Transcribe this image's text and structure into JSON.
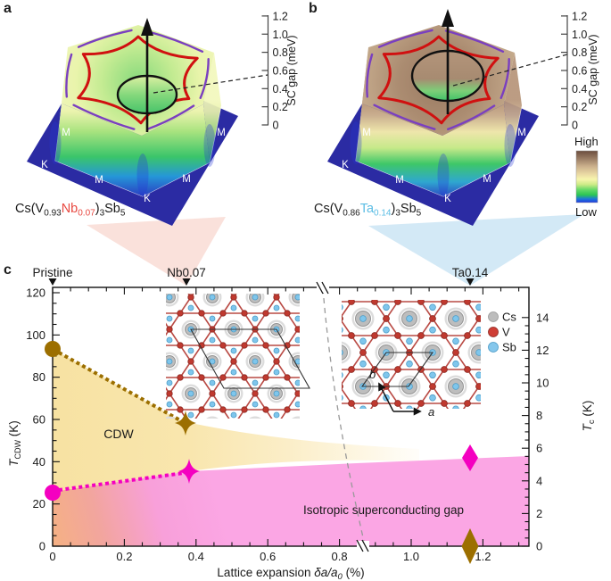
{
  "figure": {
    "panel_a_letter": "a",
    "panel_b_letter": "b",
    "panel_c_letter": "c"
  },
  "panel_a": {
    "formula": {
      "pre": "Cs(V",
      "host_sub": "0.93",
      "dopant": "Nb",
      "dopant_sub": "0.07",
      "close": ")",
      "three": "3",
      "sb": "Sb",
      "five": "5"
    },
    "dopant_color": "#e8473f",
    "axis": {
      "title": "SC gap (meV)",
      "ticks": [
        "0",
        "0.2",
        "0.4",
        "0.6",
        "0.8",
        "1.0",
        "1.2"
      ]
    },
    "m_labels": [
      "M",
      "M",
      "M",
      "M"
    ],
    "k_labels": [
      "K",
      "K",
      "K"
    ]
  },
  "panel_b": {
    "formula": {
      "pre": "Cs(V",
      "host_sub": "0.86",
      "dopant": "Ta",
      "dopant_sub": "0.14",
      "close": ")",
      "three": "3",
      "sb": "Sb",
      "five": "5"
    },
    "dopant_color": "#5bbde4",
    "axis": {
      "title": "SC gap (meV)",
      "ticks": [
        "0",
        "0.2",
        "0.4",
        "0.6",
        "0.8",
        "1.0",
        "1.2"
      ]
    },
    "m_labels": [
      "M",
      "M",
      "M",
      "M"
    ],
    "k_labels": [
      "K",
      "K",
      "K"
    ]
  },
  "colorbar": {
    "high": "High",
    "low": "Low"
  },
  "panel_c": {
    "top_markers": [
      {
        "label": "Pristine"
      },
      {
        "label": "Nb0.07"
      },
      {
        "label": "Ta0.14"
      }
    ],
    "x_axis": {
      "prefix": "Lattice expansion ",
      "italic": "δa/a",
      "sub": "0",
      "suffix": " (%)",
      "ticks": [
        "0",
        "0.2",
        "0.4",
        "0.6",
        "0.8",
        "1.0",
        "1.2"
      ]
    },
    "left_axis": {
      "symbol": "T",
      "sub": "CDW",
      "unit": " (K)",
      "color": "#b8860b",
      "ticks": [
        "0",
        "20",
        "40",
        "60",
        "80",
        "100",
        "120"
      ]
    },
    "right_axis": {
      "symbol": "T",
      "sub": "c",
      "unit": " (K)",
      "color": "#f400c0",
      "ticks": [
        "0",
        "2",
        "4",
        "6",
        "8",
        "10",
        "12",
        "14"
      ]
    },
    "region_labels": {
      "cdw": "CDW",
      "sc": "Isotropic superconducting gap"
    },
    "legend": [
      {
        "label": "Cs",
        "color": "#bdbdbd"
      },
      {
        "label": "V",
        "color": "#cf3e35"
      },
      {
        "label": "Sb",
        "color": "#85c7ec"
      }
    ],
    "vectors": {
      "a": "a",
      "b": "b"
    },
    "colors": {
      "cdw_fill": "#f8e3a6",
      "sc_fill": "#fba6e4",
      "coexist_fill": "#f5b183",
      "tcdw_marker": "#9c6f00",
      "tc_marker": "#f400c0"
    }
  },
  "chart_data": [
    {
      "type": "scatter",
      "title": "Phase diagram: CDW and superconductivity vs lattice expansion",
      "xlabel": "Lattice expansion δa/a0 (%)",
      "ylabel_left": "T_CDW (K)",
      "ylabel_right": "T_c (K)",
      "xlim": [
        0,
        1.33
      ],
      "ylim_left": [
        0,
        122
      ],
      "ylim_right": [
        0,
        15.8
      ],
      "x_axis_break_at": 0.87,
      "grid": false,
      "series": [
        {
          "name": "T_CDW",
          "axis": "left",
          "color": "#9c6f00",
          "line_style": "dotted",
          "points": [
            {
              "x": 0.0,
              "y": 94,
              "marker": "circle",
              "sample": "Pristine"
            },
            {
              "x": 0.38,
              "y": 57,
              "marker": "four-point-star",
              "sample": "Nb0.07"
            },
            {
              "x": 1.16,
              "y": 0,
              "marker": "diamond",
              "sample": "Ta0.14"
            }
          ]
        },
        {
          "name": "T_c",
          "axis": "right",
          "color": "#f400c0",
          "line_style": "dotted",
          "points": [
            {
              "x": 0.0,
              "y": 3.0,
              "marker": "circle",
              "sample": "Pristine"
            },
            {
              "x": 0.38,
              "y": 4.4,
              "marker": "four-point-star",
              "sample": "Nb0.07"
            },
            {
              "x": 1.16,
              "y": 5.2,
              "marker": "diamond",
              "sample": "Ta0.14"
            }
          ]
        }
      ],
      "regions": [
        {
          "label": "CDW",
          "x_range": [
            0,
            0.85
          ],
          "bounded_by": "T_CDW line above, T_c line below"
        },
        {
          "label": "Isotropic superconducting gap",
          "x_range": [
            0,
            1.33
          ],
          "bounded_by": "below T_c line"
        }
      ],
      "top_annotations": [
        {
          "label": "Pristine",
          "x": 0.0
        },
        {
          "label": "Nb0.07",
          "x": 0.38
        },
        {
          "label": "Ta0.14",
          "x": 1.16
        }
      ]
    },
    {
      "type": "3d-surface",
      "panel": "a",
      "title": "Superconducting gap structure of Cs(V0.93Nb0.07)3Sb5",
      "zlabel": "SC gap (meV)",
      "zlim": [
        0,
        1.2
      ],
      "zticks": [
        0,
        0.2,
        0.4,
        0.6,
        0.8,
        1.0,
        1.2
      ],
      "brillouin_zone_points": [
        "M",
        "K"
      ],
      "pointer_gap_mev": 0.55,
      "contours": [
        "black ellipse (Gamma pocket)",
        "red hexagon",
        "purple arcs"
      ],
      "colorbar": {
        "high": "High",
        "low": "Low"
      }
    },
    {
      "type": "3d-surface",
      "panel": "b",
      "title": "Superconducting gap structure of Cs(V0.86Ta0.14)3Sb5",
      "zlabel": "SC gap (meV)",
      "zlim": [
        0,
        1.2
      ],
      "zticks": [
        0,
        0.2,
        0.4,
        0.6,
        0.8,
        1.0,
        1.2
      ],
      "brillouin_zone_points": [
        "M",
        "K"
      ],
      "pointer_gap_mev": 0.8,
      "contours": [
        "black ellipse (Gamma pocket)",
        "red hexagon",
        "purple arcs"
      ],
      "colorbar": {
        "high": "High",
        "low": "Low"
      }
    }
  ]
}
